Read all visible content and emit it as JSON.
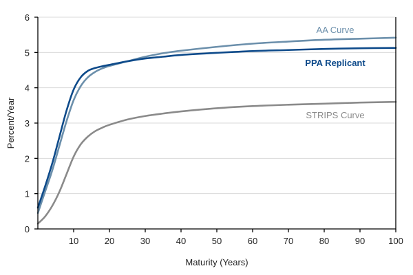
{
  "chart_data": {
    "type": "line",
    "xlabel": "Maturity (Years)",
    "ylabel": "Percent/Year",
    "xlim": [
      0,
      100
    ],
    "ylim": [
      0,
      6
    ],
    "x_ticks": [
      10,
      20,
      30,
      40,
      50,
      60,
      70,
      80,
      90,
      100
    ],
    "y_ticks": [
      0,
      1,
      2,
      3,
      4,
      5,
      6
    ],
    "grid": "horizontal",
    "legend": "inline labels near right end of each curve",
    "series": [
      {
        "name": "AA Curve",
        "color": "#6b8fab",
        "x": [
          0,
          2,
          4,
          6,
          8,
          10,
          12,
          14,
          16,
          18,
          20,
          25,
          30,
          35,
          40,
          50,
          60,
          70,
          80,
          90,
          100
        ],
        "y": [
          0.45,
          1.05,
          1.65,
          2.35,
          3.05,
          3.65,
          4.05,
          4.3,
          4.45,
          4.55,
          4.62,
          4.75,
          4.88,
          4.98,
          5.05,
          5.16,
          5.25,
          5.31,
          5.36,
          5.39,
          5.42
        ]
      },
      {
        "name": "PPA Replicant",
        "color": "#0d4a8a",
        "x": [
          0,
          2,
          4,
          6,
          8,
          10,
          12,
          14,
          16,
          18,
          20,
          25,
          30,
          35,
          40,
          50,
          60,
          70,
          80,
          90,
          100
        ],
        "y": [
          0.6,
          1.2,
          1.85,
          2.6,
          3.35,
          3.95,
          4.3,
          4.48,
          4.56,
          4.61,
          4.65,
          4.75,
          4.83,
          4.88,
          4.93,
          4.99,
          5.04,
          5.07,
          5.1,
          5.12,
          5.13
        ]
      },
      {
        "name": "STRIPS Curve",
        "color": "#8a8a8a",
        "x": [
          0,
          2,
          4,
          6,
          8,
          10,
          12,
          14,
          16,
          18,
          20,
          25,
          30,
          35,
          40,
          50,
          60,
          70,
          80,
          90,
          100
        ],
        "y": [
          0.15,
          0.35,
          0.65,
          1.05,
          1.55,
          2.05,
          2.4,
          2.62,
          2.77,
          2.87,
          2.95,
          3.1,
          3.2,
          3.27,
          3.33,
          3.42,
          3.48,
          3.52,
          3.55,
          3.58,
          3.6
        ]
      }
    ],
    "annotations": [
      {
        "text": "AA Curve",
        "series": 0
      },
      {
        "text": "PPA Replicant",
        "series": 1
      },
      {
        "text": "STRIPS Curve",
        "series": 2
      }
    ]
  }
}
